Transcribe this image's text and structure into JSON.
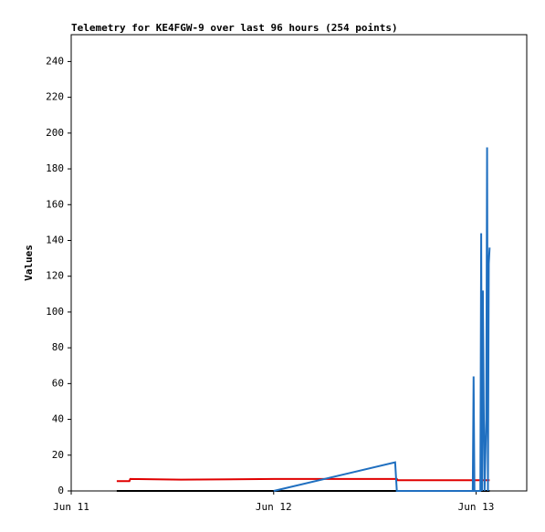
{
  "chart_data": {
    "type": "line",
    "title": "Telemetry for KE4FGW-9 over last 96 hours (254 points)",
    "y_label": "Values",
    "xlim": [
      0,
      54
    ],
    "xticks": [
      {
        "value": 0,
        "label": "Jun 11"
      },
      {
        "value": 24,
        "label": "Jun 12"
      },
      {
        "value": 48,
        "label": "Jun 13"
      }
    ],
    "ylim": [
      0,
      255
    ],
    "yticks": [
      0,
      20,
      40,
      60,
      80,
      100,
      120,
      140,
      160,
      180,
      200,
      220,
      240
    ],
    "grid": false,
    "series": [
      {
        "color": "#000000",
        "x": [
          5.4,
          49.6
        ],
        "values": [
          0,
          0
        ]
      },
      {
        "color": "#e00000",
        "x": [
          5.4,
          6.9,
          7.0,
          13,
          24,
          38.6,
          38.7,
          49.6
        ],
        "values": [
          5.5,
          5.5,
          6.7,
          6.3,
          6.7,
          6.7,
          6.0,
          6.0
        ]
      },
      {
        "color": "#1f6fc0",
        "x": [
          24,
          38.4,
          38.6,
          47.6,
          47.7,
          47.8,
          48.5,
          48.6,
          48.7,
          48.8,
          48.9,
          49.0,
          49.2,
          49.3,
          49.4,
          49.5,
          49.6
        ],
        "values": [
          0,
          16,
          0,
          0,
          64,
          0,
          0,
          144,
          0,
          112,
          48,
          0,
          40,
          192,
          0,
          127,
          136
        ]
      }
    ]
  }
}
